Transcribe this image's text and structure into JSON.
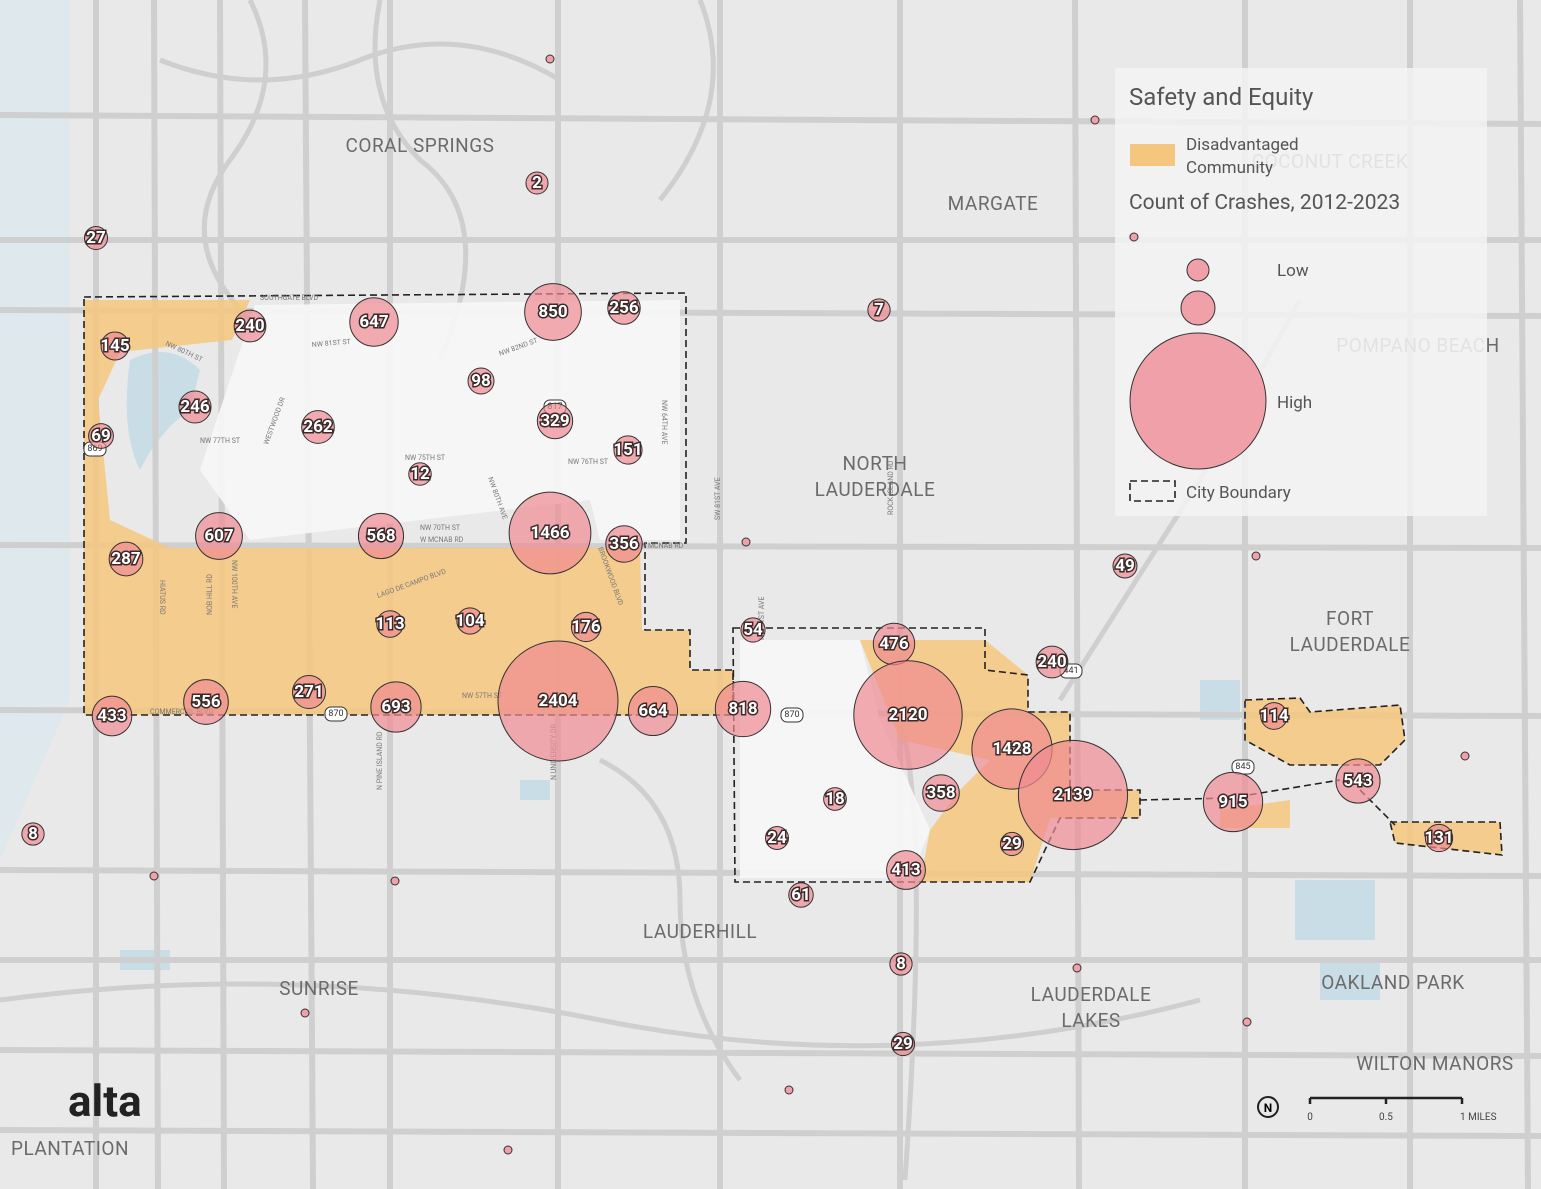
{
  "legend": {
    "title": "Safety and Equity",
    "disadvantaged": [
      "Disadvantaged",
      "Community"
    ],
    "crash_title": "Count of Crashes, 2012-2023",
    "low": "Low",
    "high": "High",
    "boundary": "City Boundary"
  },
  "places": [
    {
      "lines": [
        "CORAL SPRINGS"
      ]
    },
    {
      "lines": [
        "MARGATE"
      ]
    },
    {
      "lines": [
        "COCONUT CREEK"
      ]
    },
    {
      "lines": [
        "NORTH",
        "LAUDERDALE"
      ]
    },
    {
      "lines": [
        "POMPANO BEACH"
      ]
    },
    {
      "lines": [
        "FORT",
        "LAUDERDALE"
      ]
    },
    {
      "lines": [
        "LAUDERHILL"
      ]
    },
    {
      "lines": [
        "SUNRISE"
      ]
    },
    {
      "lines": [
        "LAUDERDALE",
        "LAKES"
      ]
    },
    {
      "lines": [
        "OAKLAND PARK"
      ]
    },
    {
      "lines": [
        "WILTON MANORS"
      ]
    },
    {
      "lines": [
        "PLANTATION"
      ]
    }
  ],
  "streets": [
    "SOUTHGATE BLVD",
    "NW 80TH ST",
    "NW 81ST ST",
    "NW 82ND ST",
    "NW 77TH ST",
    "WESTWOOD DR",
    "NW 75TH ST",
    "NW 76TH ST",
    "NW 70TH ST",
    "W MCNAB RD",
    "W MCNAB RD",
    "LAGO DE CAMPO BLVD",
    "NW 57TH ST",
    "COMMERCIAL BLVD",
    "HIATUS RD",
    "NOB HILL RD",
    "NW 100TH AVE",
    "N PINE ISLAND RD",
    "N UNIVERSITY DR",
    "BROOKWOOD BLVD",
    "NW 80TH AVE",
    "SW 81ST AVE",
    "NW 61ST AVE",
    "ROCK ISLAND RD",
    "NW 64TH AVE"
  ],
  "shields": [
    "817",
    "869",
    "870",
    "870",
    "441",
    "845"
  ],
  "crashes": [
    2,
    27,
    850,
    256,
    647,
    240,
    145,
    98,
    246,
    329,
    262,
    69,
    151,
    12,
    1466,
    607,
    568,
    356,
    287,
    49,
    113,
    104,
    176,
    54,
    476,
    240,
    271,
    556,
    693,
    2404,
    664,
    818,
    433,
    2120,
    114,
    1428,
    543,
    358,
    2139,
    915,
    18,
    24,
    131,
    29,
    413,
    61,
    8,
    8,
    29,
    7
  ],
  "scale": {
    "ticks": [
      "0",
      "0.5",
      "1 MILES"
    ]
  },
  "north": "N",
  "logo": "alta"
}
